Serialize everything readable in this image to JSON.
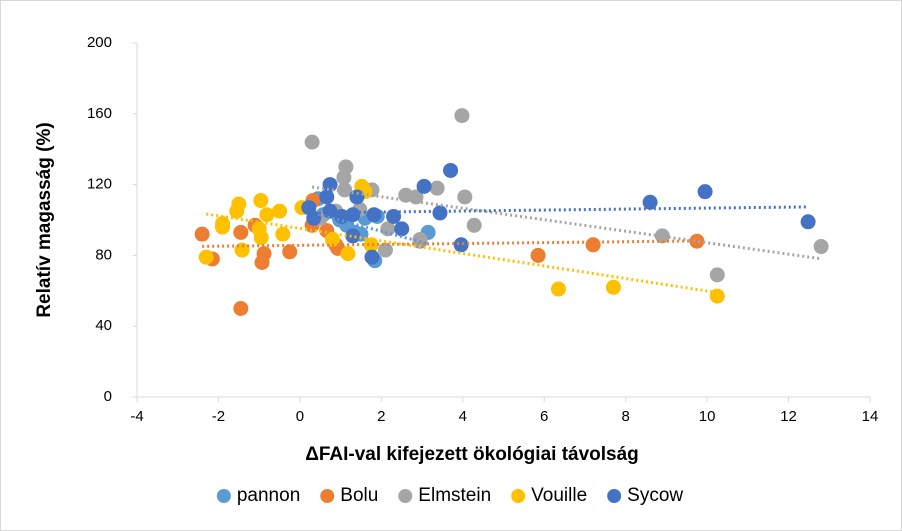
{
  "chart_data": {
    "type": "scatter",
    "x_label": "ΔFAI-val kifejezett ökológiai távolság",
    "y_label": "Relatív magasság (%)",
    "xlim": [
      -4,
      14
    ],
    "xticks": [
      -4,
      -2,
      0,
      2,
      4,
      6,
      8,
      10,
      12,
      14
    ],
    "ylim": [
      0,
      200
    ],
    "yticks": [
      0,
      40,
      80,
      120,
      160,
      200
    ],
    "trendline": true,
    "legend": "bottom",
    "series": [
      {
        "name": "pannon",
        "color": "#5b9bd5",
        "x": [
          0.44,
          0.57,
          0.98,
          1.15,
          1.35,
          1.5,
          1.84,
          2.95,
          3.15,
          1.9,
          1.6
        ],
        "values": [
          112,
          103,
          100,
          97,
          93,
          92,
          77,
          88,
          93,
          102,
          101
        ]
      },
      {
        "name": "Bolu",
        "color": "#ed7d31",
        "x": [
          -2.4,
          -2.15,
          -1.45,
          -1.45,
          -0.93,
          -0.88,
          -1.1,
          -0.25,
          0.3,
          0.32,
          0.66,
          0.88,
          0.93,
          5.85,
          7.2,
          9.75
        ],
        "values": [
          92,
          78,
          93,
          50,
          76,
          81,
          97,
          82,
          97,
          111,
          94,
          86,
          84,
          80,
          86,
          88
        ]
      },
      {
        "name": "Elmstein",
        "color": "#a5a5a5",
        "x": [
          0.3,
          1.1,
          1.13,
          1.08,
          1.47,
          1.77,
          2.1,
          2.16,
          2.6,
          2.85,
          3.37,
          3.98,
          4.05,
          4.28,
          8.9,
          10.25,
          12.8,
          0.5,
          0.88,
          2.95
        ],
        "values": [
          144,
          117,
          130,
          124,
          106,
          117,
          83,
          95,
          114,
          113,
          118,
          159,
          113,
          97,
          91,
          69,
          85,
          101,
          105,
          89
        ]
      },
      {
        "name": "Vouille",
        "color": "#ffc000",
        "x": [
          -2.3,
          -1.9,
          -1.9,
          -1.55,
          -1.5,
          -1.42,
          -1.0,
          -0.96,
          -0.81,
          -0.5,
          -0.42,
          0.05,
          0.8,
          1.18,
          1.52,
          1.75,
          6.35,
          7.7,
          10.25,
          1.6,
          -0.95
        ],
        "values": [
          79,
          98,
          96,
          105,
          109,
          83,
          95,
          111,
          103,
          105,
          92,
          107,
          89,
          81,
          119,
          86,
          61,
          62,
          57,
          116,
          90
        ]
      },
      {
        "name": "Sycow",
        "color": "#4472c4",
        "x": [
          0.22,
          0.34,
          0.66,
          0.74,
          0.74,
          1.03,
          1.3,
          1.3,
          1.4,
          1.82,
          1.77,
          2.3,
          2.5,
          3.05,
          3.44,
          3.7,
          3.96,
          8.6,
          9.95,
          12.48
        ],
        "values": [
          107,
          101,
          113,
          120,
          105,
          102,
          103,
          91,
          113,
          103,
          79,
          102,
          95,
          119,
          104,
          128,
          86,
          110,
          116,
          99
        ]
      }
    ]
  }
}
